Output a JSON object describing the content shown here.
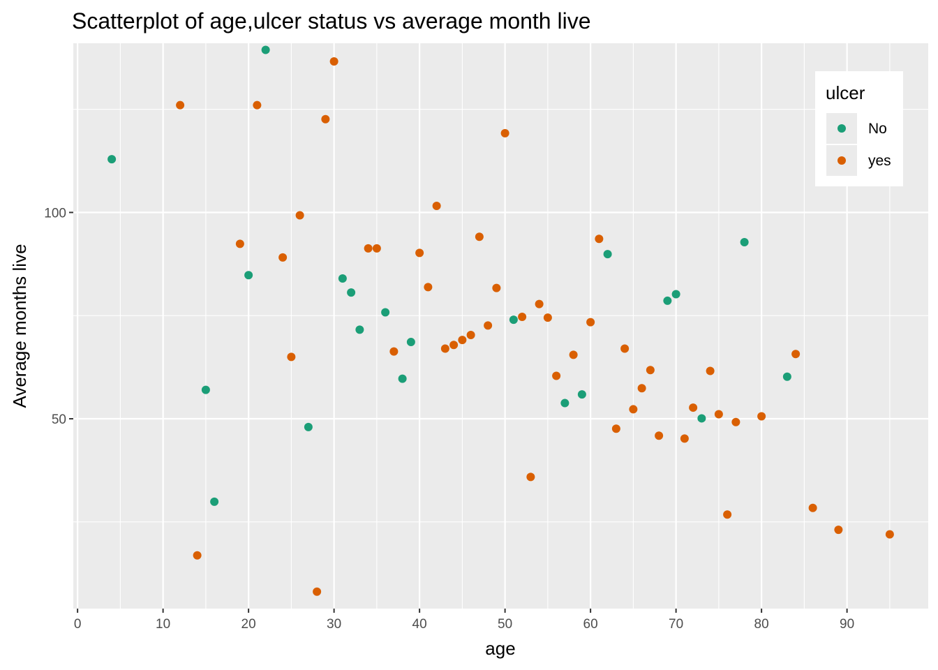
{
  "chart_data": {
    "type": "scatter",
    "title": "Scatterplot of age,ulcer status vs average month live",
    "xlabel": "age",
    "ylabel": "Average months live",
    "xlim": [
      -0.5,
      99.5
    ],
    "ylim": [
      4,
      141
    ],
    "x_ticks": [
      0,
      10,
      20,
      30,
      40,
      50,
      60,
      70,
      80,
      90
    ],
    "y_ticks": [
      50,
      100
    ],
    "grid": true,
    "legend": {
      "title": "ulcer",
      "position": "top-right",
      "entries": [
        {
          "label": "No",
          "color": "#1b9e77"
        },
        {
          "label": "yes",
          "color": "#d95f02"
        }
      ]
    },
    "series": [
      {
        "name": "No",
        "color": "#1b9e77",
        "points": [
          [
            4,
            112.9
          ],
          [
            15,
            57.0
          ],
          [
            16,
            29.9
          ],
          [
            20,
            84.8
          ],
          [
            22,
            139.4
          ],
          [
            27,
            48.0
          ],
          [
            31,
            84.0
          ],
          [
            32,
            80.6
          ],
          [
            33,
            71.6
          ],
          [
            36,
            75.8
          ],
          [
            38,
            59.7
          ],
          [
            39,
            68.6
          ],
          [
            51,
            74.0
          ],
          [
            57,
            53.8
          ],
          [
            59,
            55.9
          ],
          [
            62,
            89.9
          ],
          [
            69,
            78.6
          ],
          [
            70,
            80.2
          ],
          [
            73,
            50.1
          ],
          [
            78,
            92.8
          ],
          [
            83,
            60.2
          ]
        ]
      },
      {
        "name": "yes",
        "color": "#d95f02",
        "points": [
          [
            12,
            126.0
          ],
          [
            14,
            16.9
          ],
          [
            19,
            92.4
          ],
          [
            21,
            126.0
          ],
          [
            24,
            89.1
          ],
          [
            25,
            65.0
          ],
          [
            26,
            99.3
          ],
          [
            28,
            8.1
          ],
          [
            29,
            122.6
          ],
          [
            30,
            136.6
          ],
          [
            34,
            91.3
          ],
          [
            35,
            91.3
          ],
          [
            37,
            66.3
          ],
          [
            40,
            90.2
          ],
          [
            41,
            81.9
          ],
          [
            42,
            101.6
          ],
          [
            43,
            67.0
          ],
          [
            44,
            67.9
          ],
          [
            45,
            69.1
          ],
          [
            46,
            70.3
          ],
          [
            47,
            94.1
          ],
          [
            48,
            72.6
          ],
          [
            49,
            81.7
          ],
          [
            50,
            119.2
          ],
          [
            52,
            74.7
          ],
          [
            53,
            35.9
          ],
          [
            54,
            77.8
          ],
          [
            55,
            74.5
          ],
          [
            56,
            60.4
          ],
          [
            58,
            65.5
          ],
          [
            60,
            73.4
          ],
          [
            61,
            93.6
          ],
          [
            63,
            47.6
          ],
          [
            64,
            67.0
          ],
          [
            65,
            52.3
          ],
          [
            66,
            57.4
          ],
          [
            67,
            61.8
          ],
          [
            68,
            45.9
          ],
          [
            71,
            45.2
          ],
          [
            72,
            52.7
          ],
          [
            74,
            61.6
          ],
          [
            75,
            51.1
          ],
          [
            76,
            26.8
          ],
          [
            77,
            49.2
          ],
          [
            80,
            50.6
          ],
          [
            84,
            65.7
          ],
          [
            86,
            28.4
          ],
          [
            89,
            23.1
          ],
          [
            95,
            22.0
          ]
        ]
      }
    ]
  }
}
